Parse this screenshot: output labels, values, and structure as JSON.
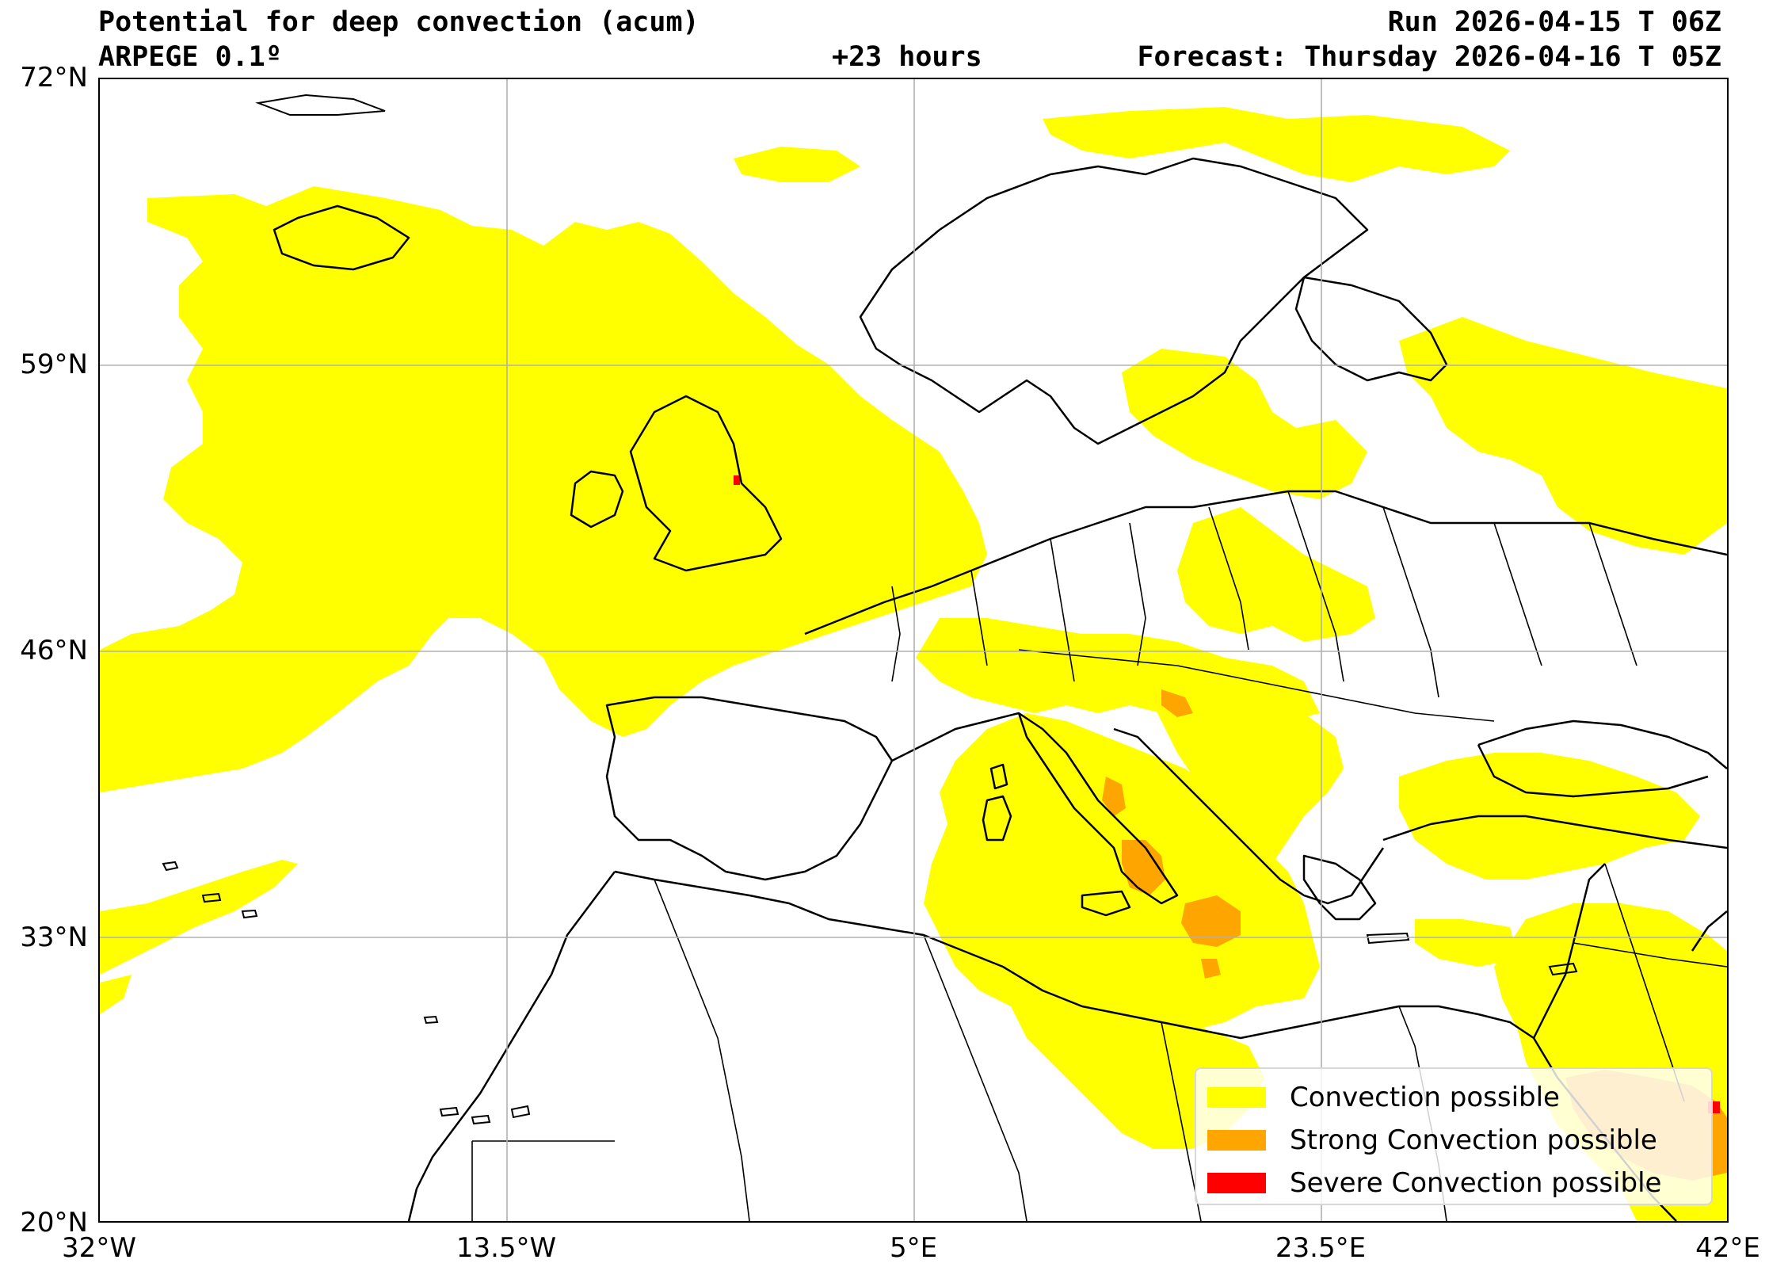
{
  "header": {
    "title": "Potential for deep convection (acum)",
    "model": "ARPEGE 0.1º",
    "lead_time": "+23 hours",
    "run": "Run 2026-04-15 T 06Z",
    "forecast": "Forecast: Thursday 2026-04-16 T 05Z"
  },
  "axes": {
    "lat_labels": [
      "72°N",
      "59°N",
      "46°N",
      "33°N",
      "20°N"
    ],
    "lon_labels": [
      "32°W",
      "13.5°W",
      "5°E",
      "23.5°E",
      "42°E"
    ],
    "lat_range": [
      20,
      72
    ],
    "lon_range": [
      -32,
      42
    ],
    "grid": true
  },
  "legend": {
    "placement": "lower-right",
    "items": [
      {
        "label": "Convection possible",
        "color": "#ffff00"
      },
      {
        "label": "Strong Convection possible",
        "color": "#ffa500"
      },
      {
        "label": "Severe Convection possible",
        "color": "#ff0000"
      }
    ]
  },
  "colors": {
    "convection": "#ffff00",
    "strong": "#ffa500",
    "severe": "#ff0000",
    "coastline": "#000000",
    "gridline": "#b0b0b0"
  }
}
